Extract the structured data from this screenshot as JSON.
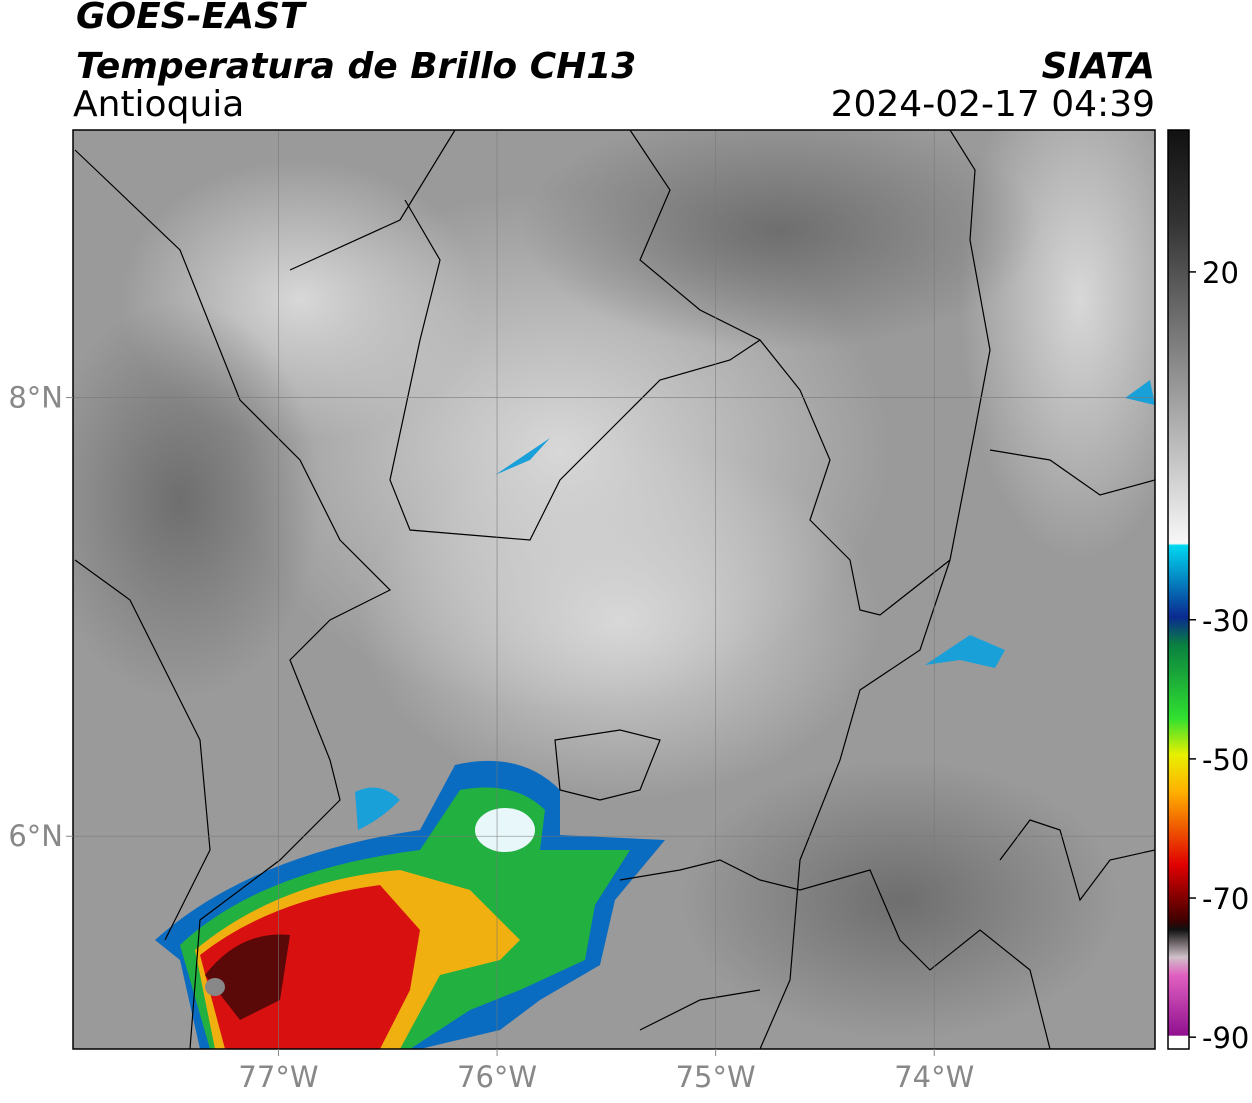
{
  "header": {
    "title": "GOES-EAST",
    "subtitle": "Temperatura de Brillo CH13",
    "region": "Antioquia",
    "source": "SIATA",
    "timestamp": "2024-02-17 04:39"
  },
  "map": {
    "lonlim": [
      -77.94,
      -72.99
    ],
    "latlim": [
      5.03,
      9.22
    ],
    "lon_ticks": [
      {
        "value": -77,
        "label": "77°W"
      },
      {
        "value": -76,
        "label": "76°W"
      },
      {
        "value": -75,
        "label": "75°W"
      },
      {
        "value": -74,
        "label": "74°W"
      }
    ],
    "lat_ticks": [
      {
        "value": 8,
        "label": "8°N"
      },
      {
        "value": 6,
        "label": "6°N"
      }
    ],
    "grid": true
  },
  "colorbar": {
    "lim": [
      -91.7,
      40.4
    ],
    "ticks": [
      20,
      -30,
      -50,
      -70,
      -90
    ]
  }
}
